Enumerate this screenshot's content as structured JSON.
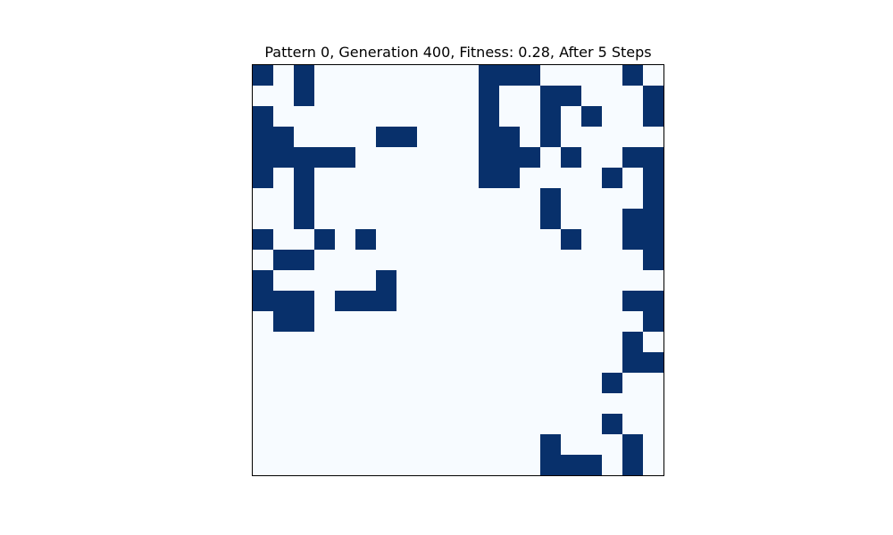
{
  "chart_data": {
    "type": "heatmap",
    "title": "Pattern 0, Generation 400, Fitness: 0.28, After 5 Steps",
    "xlabel": "",
    "ylabel": "",
    "grid": false,
    "ticks": false,
    "rows": 20,
    "cols": 20,
    "colors": {
      "on": "#08306b",
      "off": "#f7fbff",
      "frame": "#000000"
    },
    "cells": [
      "10100000000111000010",
      "00100000000100110001",
      "10000000000100101001",
      "11000011000110100000",
      "11111000000111010011",
      "10100000000110000101",
      "00100000000000100001",
      "00100000000000100011",
      "10010100000000010011",
      "01100000000000000001",
      "10000010000000000000",
      "11101110000000000011",
      "01100000000000000001",
      "00000000000000000010",
      "00000000000000000011",
      "00000000000000000100",
      "00000000000000000000",
      "00000000000000000100",
      "00000000000000100010",
      "00000000000000111010"
    ]
  }
}
